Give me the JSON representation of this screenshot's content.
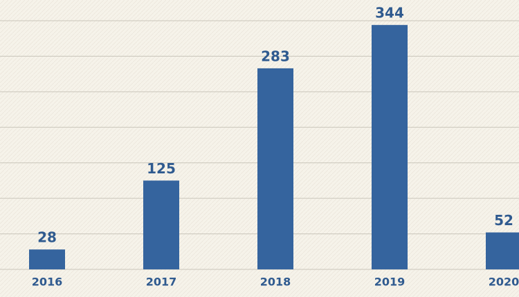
{
  "chart_data": {
    "type": "bar",
    "categories": [
      "2016",
      "2017",
      "2018",
      "2019",
      "2020"
    ],
    "values": [
      28,
      125,
      283,
      344,
      52
    ],
    "color": "#35649e",
    "ylim": [
      0,
      350
    ],
    "yticks": [
      0,
      50,
      100,
      150,
      200,
      250,
      300,
      350
    ],
    "grid": true
  }
}
